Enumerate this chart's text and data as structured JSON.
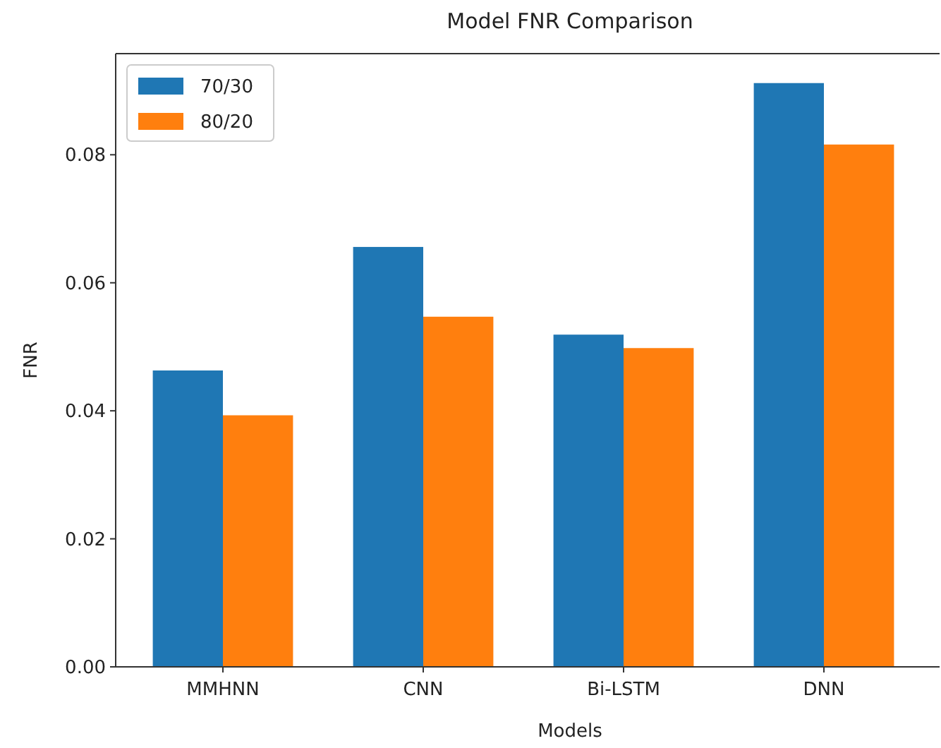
{
  "chart_data": {
    "type": "bar",
    "title": "Model FNR Comparison",
    "xlabel": "Models",
    "ylabel": "FNR",
    "categories": [
      "MMHNN",
      "CNN",
      "Bi-LSTM",
      "DNN"
    ],
    "series": [
      {
        "name": "70/30",
        "color": "#1f77b4",
        "values": [
          0.0463,
          0.0656,
          0.0519,
          0.0912
        ]
      },
      {
        "name": "80/20",
        "color": "#ff7f0e",
        "values": [
          0.0393,
          0.0547,
          0.0498,
          0.0816
        ]
      }
    ],
    "ylim": [
      0,
      0.0958
    ],
    "yticks": [
      {
        "value": 0,
        "label": "0.00"
      },
      {
        "value": 0.02,
        "label": "0.02"
      },
      {
        "value": 0.04,
        "label": "0.04"
      },
      {
        "value": 0.06,
        "label": "0.06"
      },
      {
        "value": 0.08,
        "label": "0.08"
      }
    ],
    "legend": "top left"
  }
}
